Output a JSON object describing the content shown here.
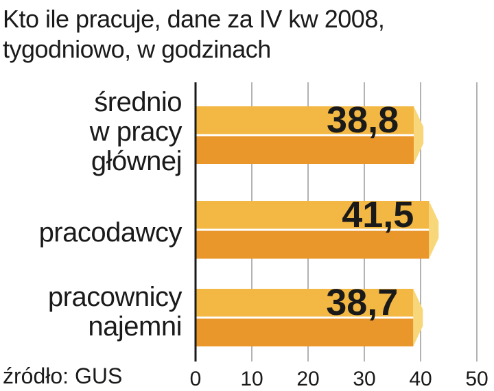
{
  "chart_data": {
    "type": "bar",
    "orientation": "horizontal",
    "title_lines": [
      "Kto ile pracuje, dane za IV kw 2008,",
      "tygodniowo, w godzinach"
    ],
    "categories": [
      [
        "średnio",
        "w pracy",
        "głównej"
      ],
      [
        "pracodawcy"
      ],
      [
        "pracownicy",
        "najemni"
      ]
    ],
    "values": [
      38.8,
      41.5,
      38.7
    ],
    "value_labels": [
      "38,8",
      "41,5",
      "38,7"
    ],
    "xlim": [
      0,
      50
    ],
    "x_ticks": [
      0,
      10,
      20,
      30,
      40,
      50
    ],
    "x_tick_labels": [
      "0",
      "10",
      "20",
      "30",
      "40",
      "50"
    ],
    "grid": true,
    "source": "źródło: GUS",
    "colors": {
      "bar_top": "#f3b843",
      "bar_bottom": "#e9962a",
      "bar_cap": "#f8d77a",
      "grid": "#9a9a9a",
      "axis": "#1a1a1a"
    }
  }
}
